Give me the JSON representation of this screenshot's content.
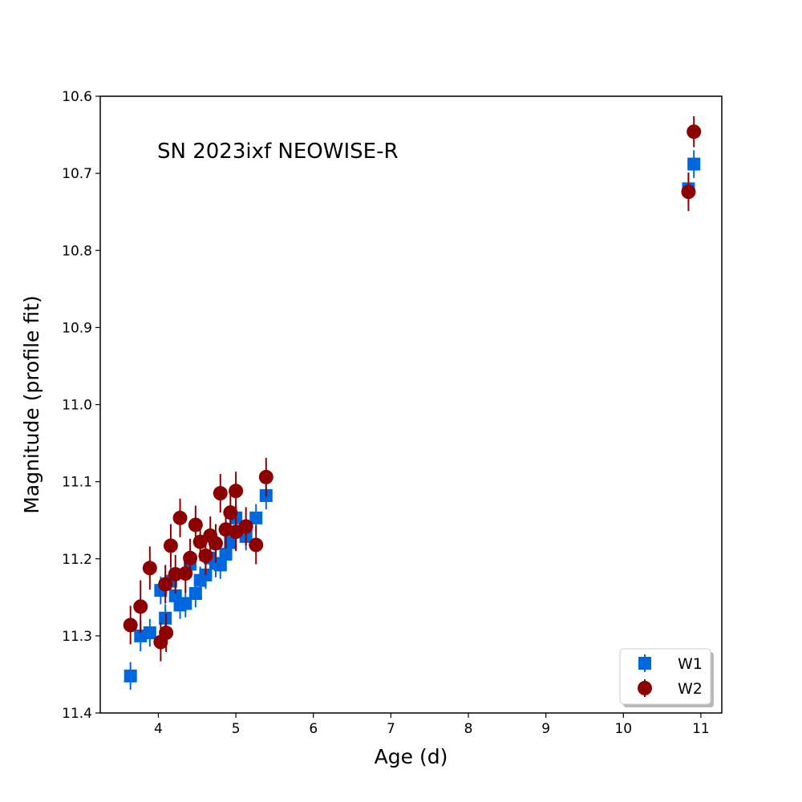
{
  "chart_data": {
    "type": "scatter",
    "annotation": "SN 2023ixf NEOWISE-R",
    "xlabel": "Age (d)",
    "ylabel": "Magnitude (profile fit)",
    "xlim": [
      3.25,
      11.27
    ],
    "ylim": [
      11.4,
      10.6
    ],
    "y_inverted": true,
    "grid": false,
    "legend_position": "bottom-right",
    "x_ticks": [
      {
        "value": 4,
        "label": "4"
      },
      {
        "value": 5,
        "label": "5"
      },
      {
        "value": 6,
        "label": "6"
      },
      {
        "value": 7,
        "label": "7"
      },
      {
        "value": 8,
        "label": "8"
      },
      {
        "value": 9,
        "label": "9"
      },
      {
        "value": 10,
        "label": "10"
      },
      {
        "value": 11,
        "label": "11"
      }
    ],
    "y_ticks": [
      {
        "value": 10.6,
        "label": "10.6"
      },
      {
        "value": 10.7,
        "label": "10.7"
      },
      {
        "value": 10.8,
        "label": "10.8"
      },
      {
        "value": 10.9,
        "label": "10.9"
      },
      {
        "value": 11.0,
        "label": "11.0"
      },
      {
        "value": 11.1,
        "label": "11.1"
      },
      {
        "value": 11.2,
        "label": "11.2"
      },
      {
        "value": 11.3,
        "label": "11.3"
      },
      {
        "value": 11.4,
        "label": "11.4"
      }
    ],
    "series": [
      {
        "name": "W1",
        "marker": "square",
        "color": "#0066dd",
        "points": [
          {
            "x": 3.64,
            "y": 11.352,
            "err": 0.018
          },
          {
            "x": 3.77,
            "y": 11.3,
            "err": 0.02
          },
          {
            "x": 3.89,
            "y": 11.296,
            "err": 0.018
          },
          {
            "x": 4.03,
            "y": 11.241,
            "err": 0.018
          },
          {
            "x": 4.09,
            "y": 11.277,
            "err": 0.018
          },
          {
            "x": 4.16,
            "y": 11.229,
            "err": 0.018
          },
          {
            "x": 4.22,
            "y": 11.248,
            "err": 0.018
          },
          {
            "x": 4.28,
            "y": 11.26,
            "err": 0.018
          },
          {
            "x": 4.35,
            "y": 11.258,
            "err": 0.018
          },
          {
            "x": 4.41,
            "y": 11.207,
            "err": 0.018
          },
          {
            "x": 4.48,
            "y": 11.245,
            "err": 0.018
          },
          {
            "x": 4.54,
            "y": 11.228,
            "err": 0.018
          },
          {
            "x": 4.61,
            "y": 11.221,
            "err": 0.018
          },
          {
            "x": 4.67,
            "y": 11.199,
            "err": 0.018
          },
          {
            "x": 4.74,
            "y": 11.206,
            "err": 0.018
          },
          {
            "x": 4.8,
            "y": 11.208,
            "err": 0.018
          },
          {
            "x": 4.87,
            "y": 11.194,
            "err": 0.018
          },
          {
            "x": 4.93,
            "y": 11.179,
            "err": 0.018
          },
          {
            "x": 5.0,
            "y": 11.147,
            "err": 0.018
          },
          {
            "x": 5.13,
            "y": 11.171,
            "err": 0.018
          },
          {
            "x": 5.26,
            "y": 11.147,
            "err": 0.018
          },
          {
            "x": 5.39,
            "y": 11.118,
            "err": 0.018
          },
          {
            "x": 10.84,
            "y": 10.72,
            "err": 0.018
          },
          {
            "x": 10.91,
            "y": 10.688,
            "err": 0.018
          }
        ]
      },
      {
        "name": "W2",
        "marker": "circle",
        "color": "#8b0000",
        "points": [
          {
            "x": 3.64,
            "y": 11.286,
            "err": 0.025
          },
          {
            "x": 3.77,
            "y": 11.262,
            "err": 0.034
          },
          {
            "x": 3.89,
            "y": 11.212,
            "err": 0.028
          },
          {
            "x": 4.03,
            "y": 11.308,
            "err": 0.025
          },
          {
            "x": 4.09,
            "y": 11.233,
            "err": 0.025
          },
          {
            "x": 4.1,
            "y": 11.296,
            "err": 0.025
          },
          {
            "x": 4.16,
            "y": 11.183,
            "err": 0.028
          },
          {
            "x": 4.22,
            "y": 11.22,
            "err": 0.025
          },
          {
            "x": 4.28,
            "y": 11.147,
            "err": 0.025
          },
          {
            "x": 4.35,
            "y": 11.219,
            "err": 0.025
          },
          {
            "x": 4.41,
            "y": 11.199,
            "err": 0.025
          },
          {
            "x": 4.48,
            "y": 11.156,
            "err": 0.025
          },
          {
            "x": 4.54,
            "y": 11.178,
            "err": 0.025
          },
          {
            "x": 4.61,
            "y": 11.196,
            "err": 0.025
          },
          {
            "x": 4.67,
            "y": 11.17,
            "err": 0.025
          },
          {
            "x": 4.74,
            "y": 11.18,
            "err": 0.025
          },
          {
            "x": 4.8,
            "y": 11.115,
            "err": 0.025
          },
          {
            "x": 4.87,
            "y": 11.162,
            "err": 0.025
          },
          {
            "x": 4.93,
            "y": 11.14,
            "err": 0.025
          },
          {
            "x": 5.0,
            "y": 11.112,
            "err": 0.025
          },
          {
            "x": 5.0,
            "y": 11.165,
            "err": 0.025
          },
          {
            "x": 5.13,
            "y": 11.158,
            "err": 0.025
          },
          {
            "x": 5.26,
            "y": 11.182,
            "err": 0.025
          },
          {
            "x": 5.39,
            "y": 11.094,
            "err": 0.025
          },
          {
            "x": 10.84,
            "y": 10.724,
            "err": 0.025
          },
          {
            "x": 10.91,
            "y": 10.646,
            "err": 0.02
          }
        ]
      }
    ]
  }
}
